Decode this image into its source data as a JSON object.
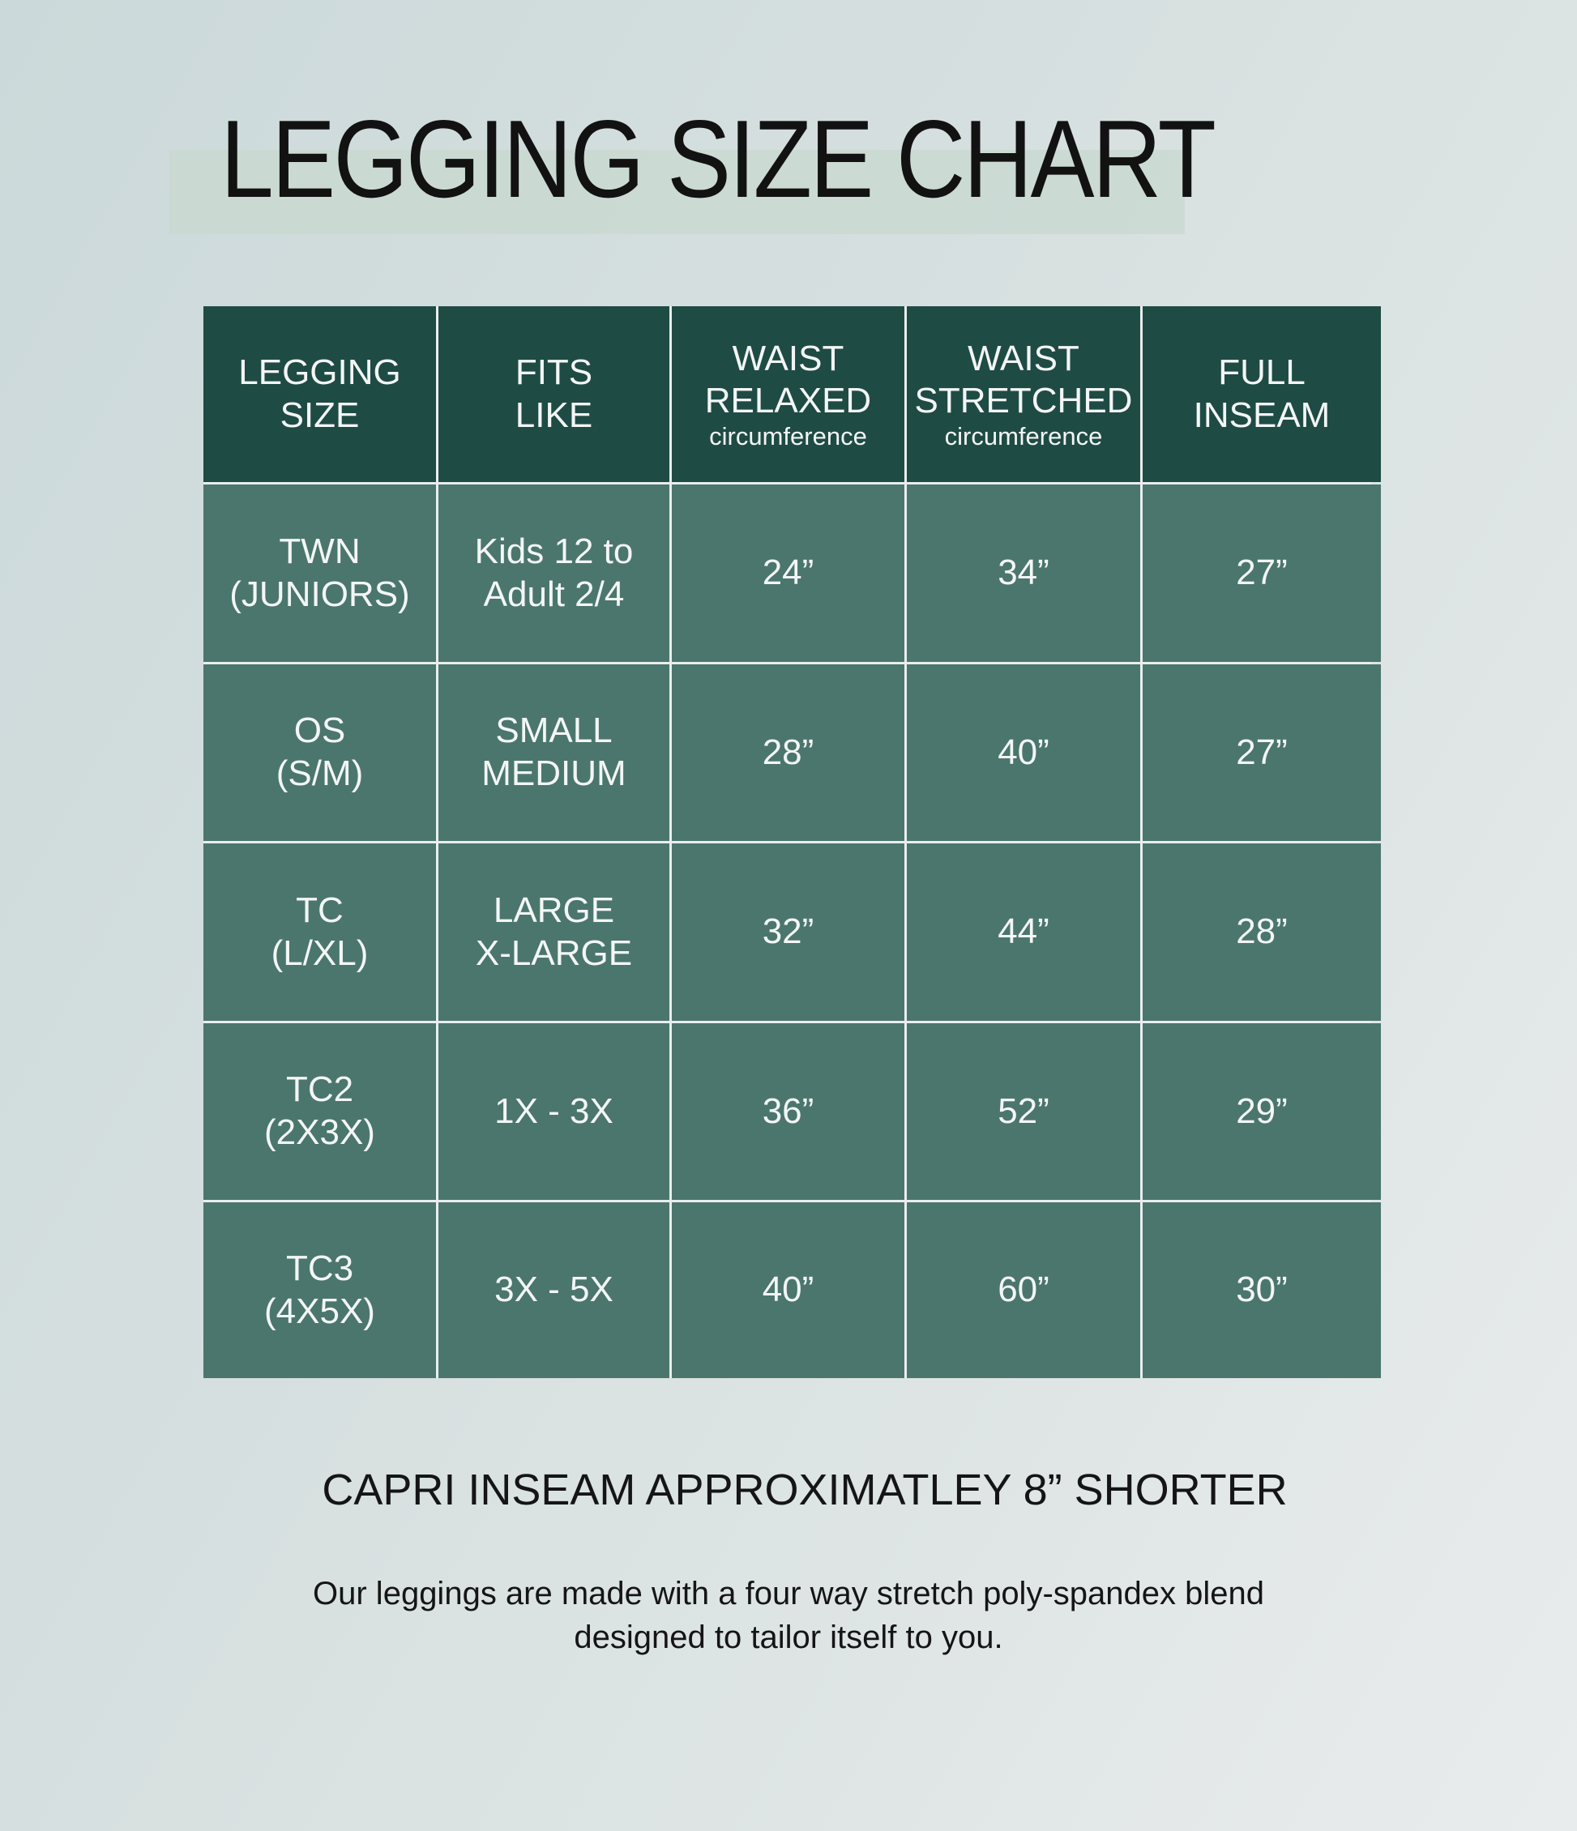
{
  "title": "LEGGING SIZE CHART",
  "colors": {
    "header_bg": "#1f4b45",
    "body_bg": "#4b766d",
    "title_highlight": "#c9d9d1"
  },
  "table": {
    "headers": [
      {
        "line1": "LEGGING",
        "line2": "SIZE",
        "sub": ""
      },
      {
        "line1": "FITS",
        "line2": "LIKE",
        "sub": ""
      },
      {
        "line1": "WAIST",
        "line2": "RELAXED",
        "sub": "circumference"
      },
      {
        "line1": "WAIST",
        "line2": "STRETCHED",
        "sub": "circumference"
      },
      {
        "line1": "FULL",
        "line2": "INSEAM",
        "sub": ""
      }
    ],
    "rows": [
      {
        "size": [
          "TWN",
          "(JUNIORS)"
        ],
        "fits": [
          "Kids 12 to",
          "Adult 2/4"
        ],
        "relaxed": "24”",
        "stretched": "34”",
        "inseam": "27”"
      },
      {
        "size": [
          "OS",
          "(S/M)"
        ],
        "fits": [
          "SMALL",
          "MEDIUM"
        ],
        "relaxed": "28”",
        "stretched": "40”",
        "inseam": "27”"
      },
      {
        "size": [
          "TC",
          "(L/XL)"
        ],
        "fits": [
          "LARGE",
          "X-LARGE"
        ],
        "relaxed": "32”",
        "stretched": "44”",
        "inseam": "28”"
      },
      {
        "size": [
          "TC2",
          "(2X3X)"
        ],
        "fits": [
          "1X - 3X",
          ""
        ],
        "relaxed": "36”",
        "stretched": "52”",
        "inseam": "29”"
      },
      {
        "size": [
          "TC3",
          "(4X5X)"
        ],
        "fits": [
          "3X - 5X",
          ""
        ],
        "relaxed": "40”",
        "stretched": "60”",
        "inseam": "30”"
      }
    ]
  },
  "note": "CAPRI INSEAM APPROXIMATLEY 8” SHORTER",
  "description": [
    "Our leggings are made with a four way stretch poly-spandex blend",
    "designed to tailor itself to you."
  ]
}
